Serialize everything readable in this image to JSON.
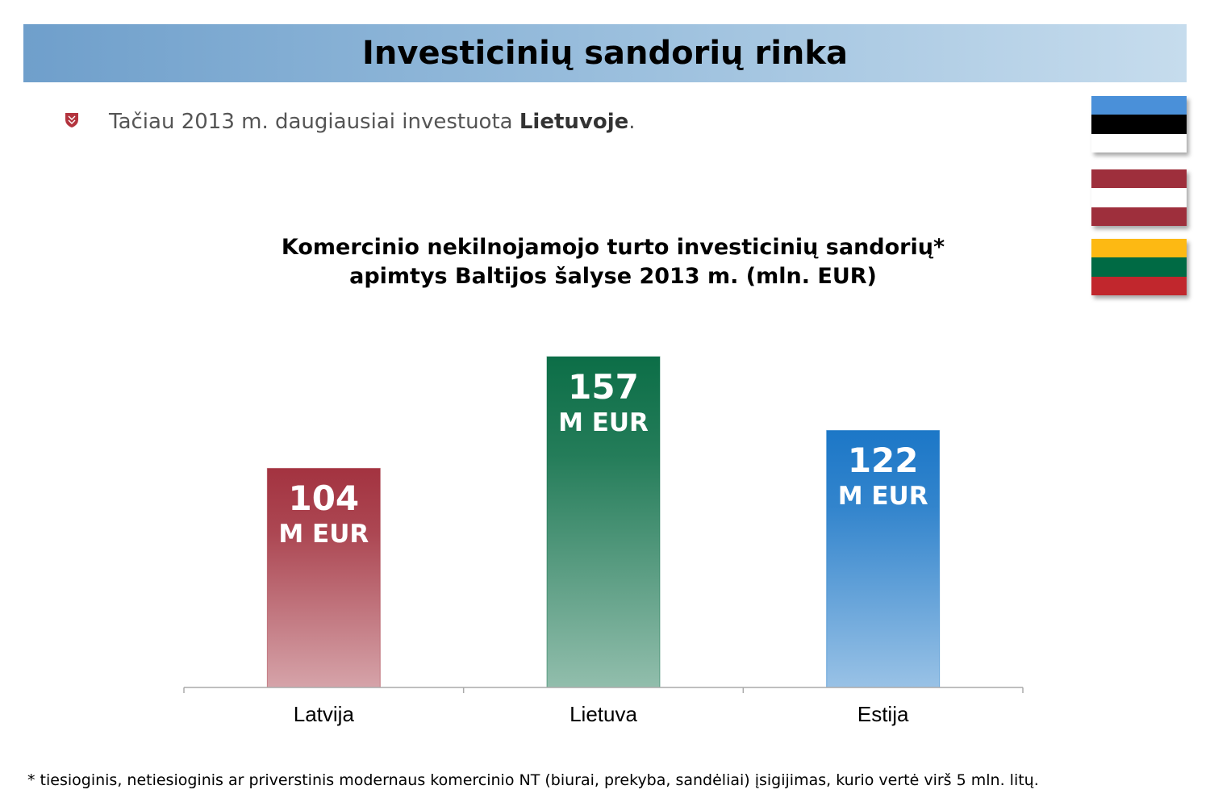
{
  "header": {
    "title": "Investicinių sandorių rinka"
  },
  "bullet": {
    "text_before": "Tačiau 2013 m. daugiausiai investuota ",
    "text_bold": "Lietuvoje",
    "text_after": "."
  },
  "flags": [
    {
      "country": "Estonia",
      "stripes": [
        "#4a90d9",
        "#000000",
        "#ffffff"
      ]
    },
    {
      "country": "Latvia",
      "stripes": [
        "#9e2f3c",
        "#ffffff",
        "#9e2f3c"
      ]
    },
    {
      "country": "Lithuania",
      "stripes": [
        "#fdb913",
        "#006a44",
        "#c1272d"
      ]
    }
  ],
  "chart_data": {
    "type": "bar",
    "title_line1": "Komercinio nekilnojamojo turto investicinių sandorių*",
    "title_line2": "apimtys Baltijos šalyse 2013 m. (mln. EUR)",
    "categories": [
      "Latvija",
      "Lietuva",
      "Estija"
    ],
    "values": [
      104,
      157,
      122
    ],
    "value_unit": "M EUR",
    "colors": [
      "#a33340",
      "#0c6e47",
      "#1c77c7"
    ],
    "ylim": [
      0,
      157
    ]
  },
  "footnote": "* tiesioginis, netiesioginis ar priverstinis modernaus komercinio NT (biurai, prekyba, sandėliai) įsigijimas, kurio vertė virš 5 mln. litų."
}
